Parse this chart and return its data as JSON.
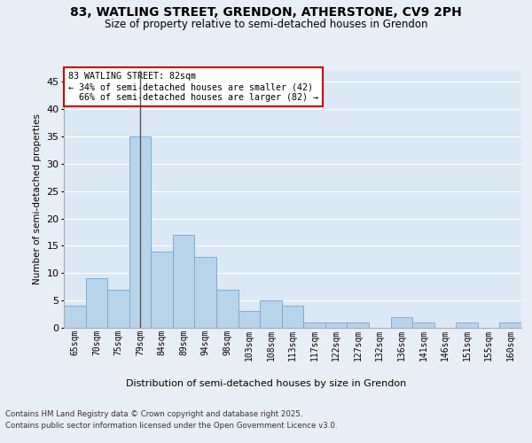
{
  "title1": "83, WATLING STREET, GRENDON, ATHERSTONE, CV9 2PH",
  "title2": "Size of property relative to semi-detached houses in Grendon",
  "xlabel": "Distribution of semi-detached houses by size in Grendon",
  "ylabel": "Number of semi-detached properties",
  "categories": [
    "65sqm",
    "70sqm",
    "75sqm",
    "79sqm",
    "84sqm",
    "89sqm",
    "94sqm",
    "98sqm",
    "103sqm",
    "108sqm",
    "113sqm",
    "117sqm",
    "122sqm",
    "127sqm",
    "132sqm",
    "136sqm",
    "141sqm",
    "146sqm",
    "151sqm",
    "155sqm",
    "160sqm"
  ],
  "values": [
    4,
    9,
    7,
    35,
    14,
    17,
    13,
    7,
    3,
    5,
    4,
    1,
    1,
    1,
    0,
    2,
    1,
    0,
    1,
    0,
    1
  ],
  "bar_color": "#b8d4ea",
  "bar_edge_color": "#7aadd4",
  "highlight_index": 3,
  "highlight_line_color": "#555555",
  "property_size": 82,
  "pct_smaller": 34,
  "count_smaller": 42,
  "pct_larger": 66,
  "count_larger": 82,
  "annotation_box_color": "#cc0000",
  "ylim": [
    0,
    47
  ],
  "yticks": [
    0,
    5,
    10,
    15,
    20,
    25,
    30,
    35,
    40,
    45
  ],
  "background_color": "#e8eef5",
  "plot_bg_color": "#dce8f4",
  "grid_color": "#ffffff",
  "footer1": "Contains HM Land Registry data © Crown copyright and database right 2025.",
  "footer2": "Contains public sector information licensed under the Open Government Licence v3.0."
}
